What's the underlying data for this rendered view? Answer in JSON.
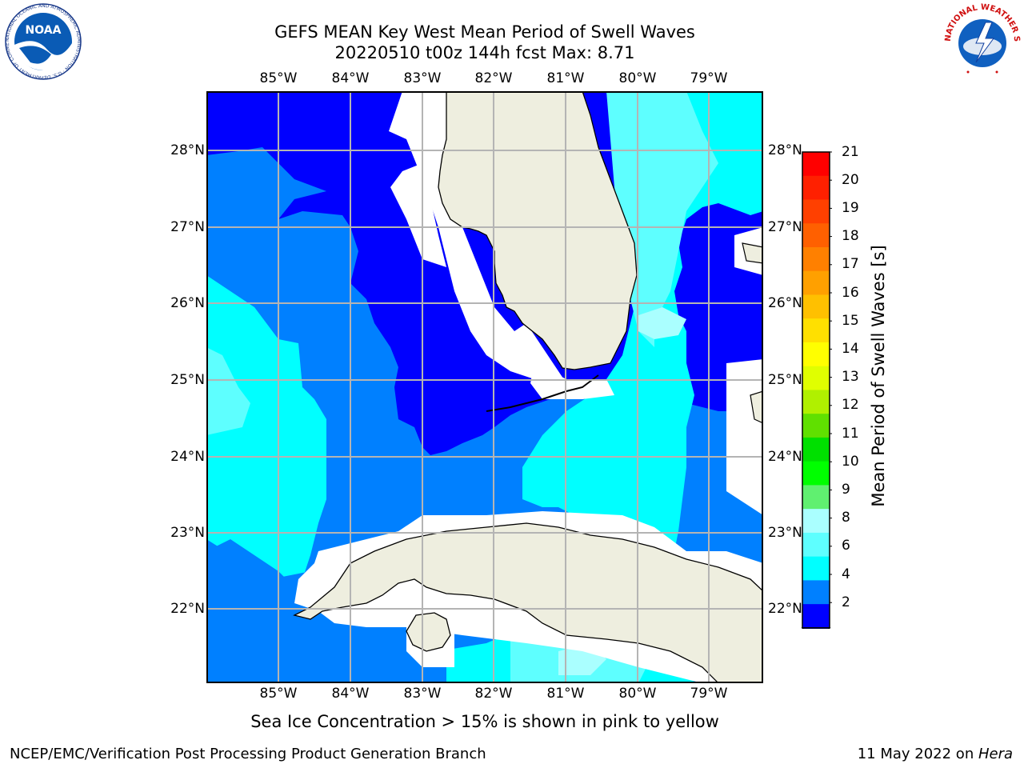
{
  "header": {
    "title_line1": "GEFS MEAN Key West Mean Period of Swell Waves",
    "title_line2": "20220510 t00z 144h fcst   Max: 8.71"
  },
  "map": {
    "lon_labels": [
      "85°W",
      "84°W",
      "83°W",
      "82°W",
      "81°W",
      "80°W",
      "79°W"
    ],
    "lat_labels": [
      "28°N",
      "27°N",
      "26°N",
      "25°N",
      "24°N",
      "23°N",
      "22°N"
    ],
    "colors": {
      "land": "#eeeedf",
      "ocean_2_4": "#0000ff",
      "ocean_4_6": "#0080ff",
      "ocean_6_8": "#00ffff",
      "ocean_8_9": "#5effff",
      "ocean_9_10": "#aaffff",
      "gridline": "#b4b4b4",
      "no_data": "#ffffff"
    }
  },
  "colorbar": {
    "label": "Mean Period of Swell Waves [s]",
    "ticks": [
      "21",
      "20",
      "19",
      "18",
      "17",
      "16",
      "15",
      "14",
      "13",
      "12",
      "11",
      "10",
      "9",
      "8",
      "6",
      "4",
      "2"
    ],
    "colors": [
      "#ff0000",
      "#ff2000",
      "#ff4000",
      "#ff6000",
      "#ff8000",
      "#ffa000",
      "#ffc000",
      "#ffe000",
      "#ffff00",
      "#e0ff00",
      "#b0f000",
      "#60e000",
      "#00e000",
      "#00ff00",
      "#60f070",
      "#aaffff",
      "#5effff",
      "#00ffff",
      "#0080ff",
      "#0000ff"
    ]
  },
  "caption": "Sea Ice Concentration > 15% is shown in pink to yellow",
  "footer": {
    "left": "NCEP/EMC/Verification Post Processing Product Generation Branch",
    "right_prefix": "11 May 2022 on ",
    "right_host": "Hera"
  },
  "logos": {
    "noaa_text": "NOAA",
    "noaa_ring_text": "NATIONAL OCEANIC AND ATMOSPHERIC ADMINISTRATION · U.S. DEPARTMENT OF COMMERCE ·",
    "nws_ring_text": "NATIONAL WEATHER SERVICE"
  }
}
